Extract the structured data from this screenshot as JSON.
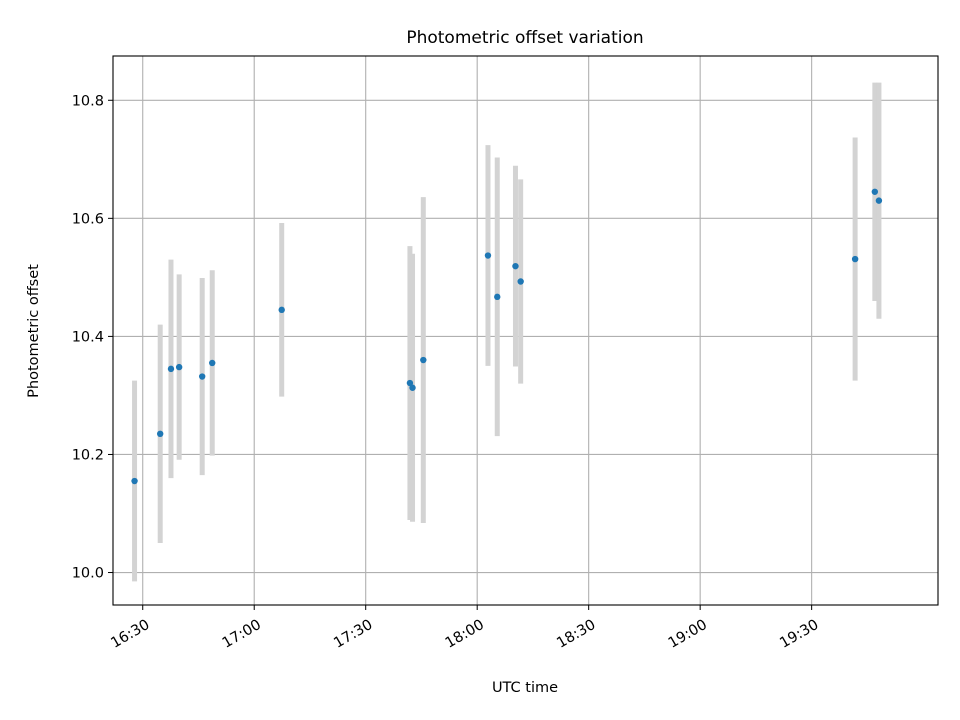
{
  "chart_data": {
    "type": "scatter",
    "title": "Photometric offset variation",
    "xlabel": "UTC time",
    "ylabel": "Photometric offset",
    "x_axis_type": "time",
    "xlim": [
      "16:22",
      "20:04"
    ],
    "ylim": [
      9.945,
      10.875
    ],
    "x_ticks": [
      "16:30",
      "17:00",
      "17:30",
      "18:00",
      "18:30",
      "19:00",
      "19:30"
    ],
    "y_ticks": [
      10.0,
      10.2,
      10.4,
      10.6,
      10.8
    ],
    "y_tick_labels": [
      "10.0",
      "10.2",
      "10.4",
      "10.6",
      "10.8"
    ],
    "grid": true,
    "legend": "none",
    "point_color": "#1f77b4",
    "errorbar_color": "#d3d3d3",
    "points": [
      {
        "x": "16:27.8",
        "y": 10.155,
        "err": 0.17
      },
      {
        "x": "16:34.7",
        "y": 10.235,
        "err": 0.185
      },
      {
        "x": "16:37.6",
        "y": 10.345,
        "err": 0.185
      },
      {
        "x": "16:39.8",
        "y": 10.348,
        "err": 0.157
      },
      {
        "x": "16:46.0",
        "y": 10.332,
        "err": 0.167
      },
      {
        "x": "16:48.7",
        "y": 10.355,
        "err": 0.157
      },
      {
        "x": "17:07.4",
        "y": 10.445,
        "err": 0.147
      },
      {
        "x": "17:41.9",
        "y": 10.321,
        "err": 0.232
      },
      {
        "x": "17:42.6",
        "y": 10.313,
        "err": 0.227
      },
      {
        "x": "17:45.5",
        "y": 10.36,
        "err": 0.276
      },
      {
        "x": "18:02.9",
        "y": 10.537,
        "err": 0.187
      },
      {
        "x": "18:05.4",
        "y": 10.467,
        "err": 0.236
      },
      {
        "x": "18:10.3",
        "y": 10.519,
        "err": 0.17
      },
      {
        "x": "18:11.7",
        "y": 10.493,
        "err": 0.173
      },
      {
        "x": "19:41.7",
        "y": 10.531,
        "err": 0.206
      },
      {
        "x": "19:47.0",
        "y": 10.645,
        "err": 0.185
      },
      {
        "x": "19:48.1",
        "y": 10.63,
        "err": 0.2
      }
    ]
  }
}
